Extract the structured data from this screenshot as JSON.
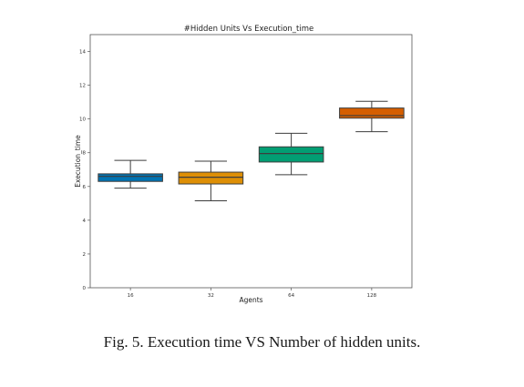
{
  "caption": "Fig. 5.  Execution time VS Number of hidden units.",
  "chart_data": {
    "type": "box",
    "title": "#Hidden Units Vs Execution_time",
    "xlabel": "Agents",
    "ylabel": "Execution_time",
    "ylim": [
      0,
      15
    ],
    "yticks": [
      0,
      2,
      4,
      6,
      8,
      10,
      12,
      14
    ],
    "grid": false,
    "categories": [
      "16",
      "32",
      "64",
      "128"
    ],
    "boxes": [
      {
        "category": "16",
        "min": 5.9,
        "q1": 6.3,
        "median": 6.6,
        "q3": 6.75,
        "max": 7.55,
        "color": "#0173b2"
      },
      {
        "category": "32",
        "min": 5.15,
        "q1": 6.15,
        "median": 6.55,
        "q3": 6.85,
        "max": 7.5,
        "color": "#de8f05"
      },
      {
        "category": "64",
        "min": 6.7,
        "q1": 7.45,
        "median": 7.95,
        "q3": 8.35,
        "max": 9.15,
        "color": "#029e73"
      },
      {
        "category": "128",
        "min": 9.25,
        "q1": 10.05,
        "median": 10.2,
        "q3": 10.65,
        "max": 11.05,
        "color": "#d55e00"
      }
    ]
  }
}
